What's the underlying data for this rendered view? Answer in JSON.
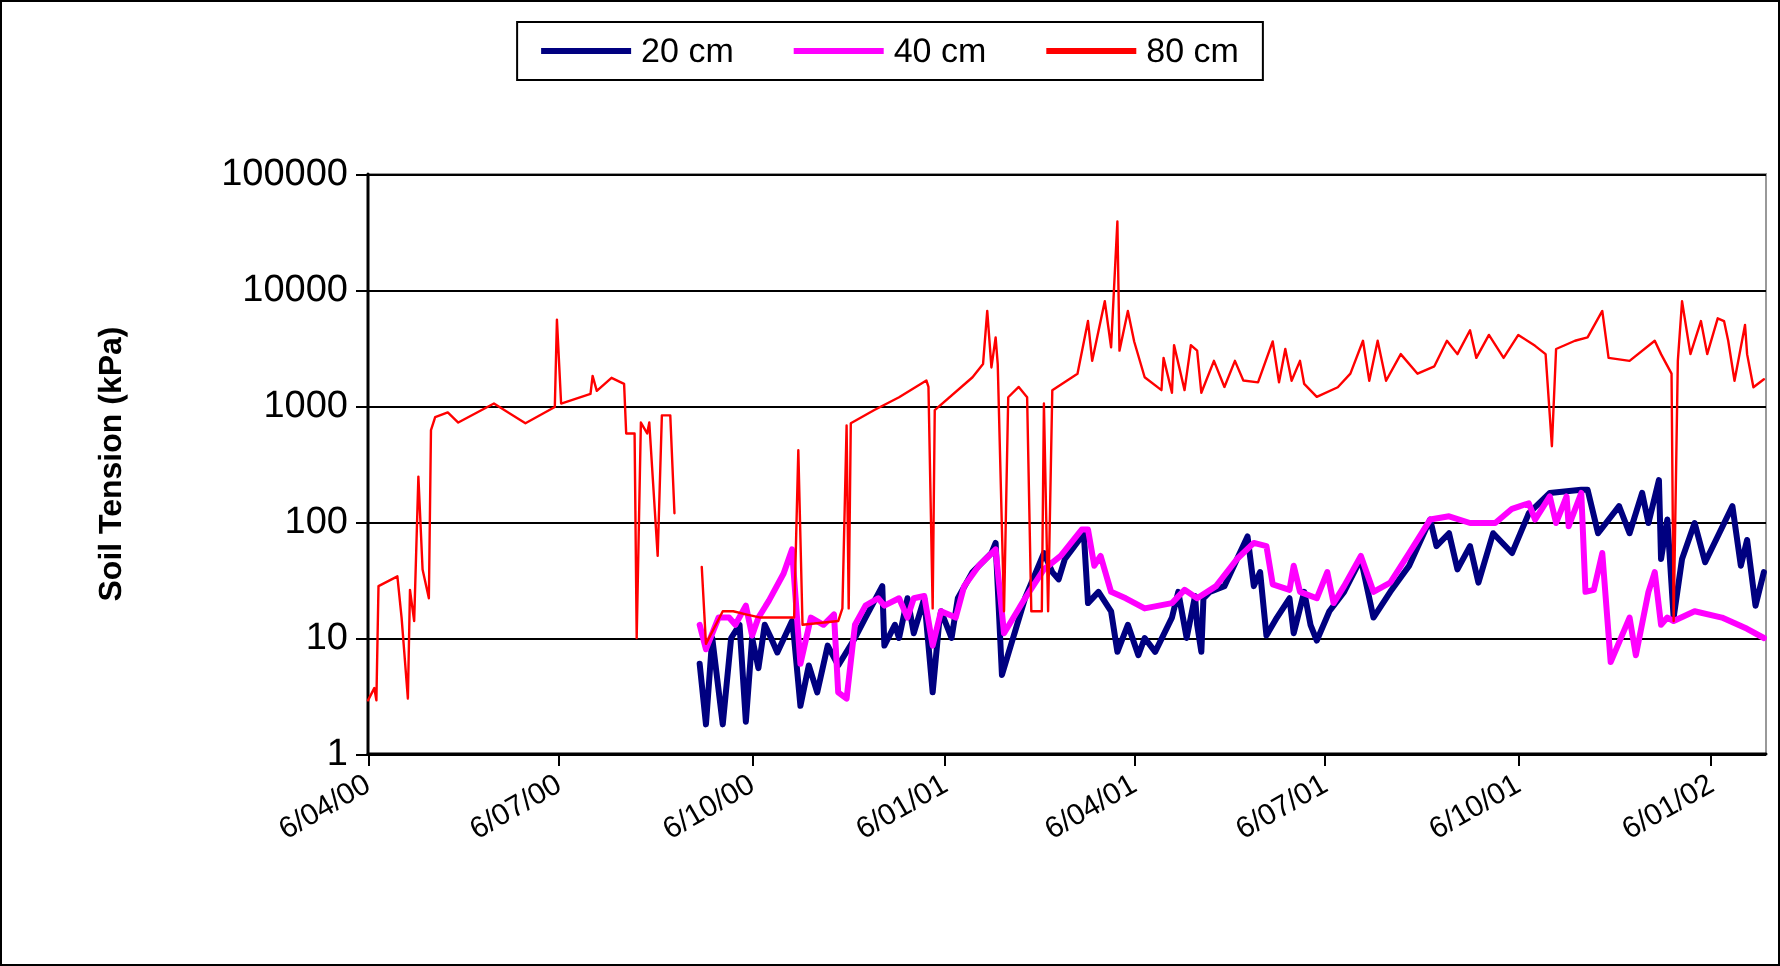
{
  "chart_data": {
    "type": "line",
    "ylabel": "Soil Tension (kPa)",
    "log": "y",
    "ylim": [
      1,
      100000
    ],
    "yticks": [
      1,
      10,
      100,
      1000,
      10000,
      100000
    ],
    "xlim": [
      "2000-04-06",
      "2002-02-01"
    ],
    "xticks": [
      {
        "value": "2000-04-06",
        "label": "6/04/00"
      },
      {
        "value": "2000-07-06",
        "label": "6/07/00"
      },
      {
        "value": "2000-10-06",
        "label": "6/10/00"
      },
      {
        "value": "2001-01-06",
        "label": "6/01/01"
      },
      {
        "value": "2001-04-06",
        "label": "6/04/01"
      },
      {
        "value": "2001-07-06",
        "label": "6/07/01"
      },
      {
        "value": "2001-10-06",
        "label": "6/10/01"
      },
      {
        "value": "2002-01-06",
        "label": "6/01/02"
      }
    ],
    "grid": "y",
    "legend": "top",
    "marker": "none",
    "line_style": "solid",
    "series": [
      {
        "name": "20 cm",
        "color": "#000080",
        "x": [
          "2000-09-11",
          "2000-09-14",
          "2000-09-17",
          "2000-09-22",
          "2000-09-26",
          "2000-09-30",
          "2000-10-03",
          "2000-10-06",
          "2000-10-09",
          "2000-10-12",
          "2000-10-15",
          "2000-10-18",
          "2000-10-25",
          "2000-10-26",
          "2000-10-29",
          "2000-11-02",
          "2000-11-06",
          "2000-11-11",
          "2000-11-16",
          "2000-11-24",
          "2000-11-29",
          "2000-12-07",
          "2000-12-08",
          "2000-12-13",
          "2000-12-15",
          "2000-12-19",
          "2000-12-22",
          "2000-12-27",
          "2000-12-31",
          "2001-01-03",
          "2001-01-04",
          "2001-01-09",
          "2001-01-12",
          "2001-01-19",
          "2001-01-28",
          "2001-01-30",
          "2001-02-02",
          "2001-02-13",
          "2001-02-22",
          "2001-02-26",
          "2001-03-01",
          "2001-03-04",
          "2001-03-12",
          "2001-03-13",
          "2001-03-15",
          "2001-03-20",
          "2001-03-26",
          "2001-03-29",
          "2001-04-03",
          "2001-04-08",
          "2001-04-11",
          "2001-04-16",
          "2001-04-24",
          "2001-04-27",
          "2001-05-01",
          "2001-05-05",
          "2001-05-06",
          "2001-05-08",
          "2001-05-09",
          "2001-05-12",
          "2001-05-19",
          "2001-05-30",
          "2001-06-02",
          "2001-06-05",
          "2001-06-08",
          "2001-06-13",
          "2001-06-19",
          "2001-06-21",
          "2001-06-26",
          "2001-06-29",
          "2001-07-02",
          "2001-07-08",
          "2001-07-15",
          "2001-07-23",
          "2001-07-29",
          "2001-08-06",
          "2001-08-15",
          "2001-08-25",
          "2001-08-28",
          "2001-09-03",
          "2001-09-07",
          "2001-09-13",
          "2001-09-17",
          "2001-09-24",
          "2001-10-03",
          "2001-10-11",
          "2001-10-21",
          "2001-11-05",
          "2001-11-08",
          "2001-11-13",
          "2001-11-23",
          "2001-11-28",
          "2001-12-04",
          "2001-12-07",
          "2001-12-12",
          "2001-12-13",
          "2001-12-16",
          "2001-12-19",
          "2001-12-23",
          "2001-12-29",
          "2002-01-03",
          "2002-01-16",
          "2002-01-20",
          "2002-01-23",
          "2002-01-27",
          "2002-01-31"
        ],
        "values": [
          6,
          1.8,
          10,
          1.8,
          10,
          13,
          1.9,
          10,
          5.5,
          13,
          10,
          7.5,
          14,
          10,
          2.6,
          5.8,
          3.4,
          8.6,
          5.8,
          10,
          15,
          28,
          8.6,
          13,
          10,
          22,
          11,
          22,
          3.4,
          13,
          17,
          10,
          22,
          37,
          54,
          66,
          4.8,
          22,
          54,
          37,
          32,
          48,
          75,
          80,
          20,
          25,
          17,
          7.6,
          13,
          7.1,
          10,
          7.6,
          15,
          25,
          10,
          23,
          13,
          7.6,
          22,
          25,
          28,
          75,
          28,
          37,
          10.5,
          15,
          22,
          11,
          25,
          13,
          9.5,
          17,
          25,
          48,
          15,
          25,
          42,
          105,
          62,
          80,
          39,
          62,
          30,
          80,
          54,
          119,
          178,
          190,
          190,
          80,
          137,
          80,
          178,
          98,
          230,
          48,
          105,
          15,
          48,
          98,
          45,
          137,
          42,
          70,
          19,
          37
        ]
      },
      {
        "name": "40 cm",
        "color": "#ff00ff",
        "x": [
          "2000-09-11",
          "2000-09-14",
          "2000-09-20",
          "2000-09-25",
          "2000-09-28",
          "2000-10-03",
          "2000-10-06",
          "2000-10-09",
          "2000-10-14",
          "2000-10-21",
          "2000-10-25",
          "2000-10-29",
          "2000-11-03",
          "2000-11-09",
          "2000-11-14",
          "2000-11-16",
          "2000-11-20",
          "2000-11-24",
          "2000-11-29",
          "2000-12-05",
          "2000-12-08",
          "2000-12-15",
          "2000-12-19",
          "2000-12-22",
          "2000-12-27",
          "2000-12-31",
          "2001-01-04",
          "2001-01-11",
          "2001-01-15",
          "2001-01-22",
          "2001-01-30",
          "2001-02-03",
          "2001-02-13",
          "2001-02-22",
          "2001-03-02",
          "2001-03-12",
          "2001-03-15",
          "2001-03-18",
          "2001-03-21",
          "2001-03-26",
          "2001-04-02",
          "2001-04-11",
          "2001-04-24",
          "2001-04-30",
          "2001-05-06",
          "2001-05-15",
          "2001-05-25",
          "2001-06-02",
          "2001-06-08",
          "2001-06-11",
          "2001-06-19",
          "2001-06-21",
          "2001-06-24",
          "2001-07-02",
          "2001-07-07",
          "2001-07-10",
          "2001-07-15",
          "2001-07-23",
          "2001-07-29",
          "2001-08-06",
          "2001-08-15",
          "2001-08-25",
          "2001-09-03",
          "2001-09-13",
          "2001-09-25",
          "2001-10-03",
          "2001-10-11",
          "2001-10-14",
          "2001-10-21",
          "2001-10-24",
          "2001-10-29",
          "2001-10-30",
          "2001-11-05",
          "2001-11-07",
          "2001-11-11",
          "2001-11-15",
          "2001-11-19",
          "2001-11-28",
          "2001-12-01",
          "2001-12-07",
          "2001-12-10",
          "2001-12-13",
          "2001-12-16",
          "2001-12-19",
          "2001-12-29",
          "2002-01-11",
          "2002-01-23",
          "2002-01-31"
        ],
        "values": [
          13,
          8,
          15,
          15,
          13,
          19,
          10.5,
          15,
          21,
          36,
          58,
          6,
          15,
          13,
          16,
          3.4,
          3,
          13,
          19,
          22,
          19,
          22,
          15,
          22,
          23,
          8.6,
          17,
          15,
          28,
          42,
          58,
          11,
          22,
          39,
          51,
          86,
          86,
          42,
          51,
          25,
          22,
          18,
          20,
          26,
          22,
          28,
          48,
          66,
          62,
          29,
          26,
          42,
          25,
          22,
          37,
          20,
          28,
          51,
          25,
          30,
          54,
          105,
          112,
          98,
          98,
          130,
          145,
          105,
          166,
          98,
          166,
          92,
          178,
          25,
          26,
          54,
          6.2,
          15,
          7.1,
          25,
          37,
          13,
          15,
          14,
          17,
          15,
          12,
          10
        ]
      },
      {
        "name": "80 cm",
        "color": "#ff0000",
        "x": [
          "2000-04-06",
          "2000-04-09",
          "2000-04-10",
          "2000-04-11",
          "2000-04-20",
          "2000-04-22",
          "2000-04-25",
          "2000-04-26",
          "2000-04-28",
          "2000-04-30",
          "2000-05-02",
          "2000-05-05",
          "2000-05-06",
          "2000-05-08",
          "2000-05-14",
          "2000-05-19",
          "2000-06-05",
          "2000-06-20",
          "2000-07-04",
          "2000-07-05",
          "2000-07-07",
          "2000-07-21",
          "2000-07-22",
          "2000-07-24",
          "2000-07-31",
          "2000-08-06",
          "2000-08-07",
          "2000-08-11",
          "2000-08-12",
          "2000-08-14",
          "2000-08-17",
          "2000-08-18",
          "2000-08-22",
          "2000-08-24",
          "2000-08-28",
          "2000-08-30",
          "2000-09-05",
          "2000-09-12",
          "2000-09-14",
          "2000-09-22",
          "2000-09-27",
          "2000-10-03",
          "2000-10-10",
          "2000-10-26",
          "2000-10-28",
          "2000-10-30",
          "2000-11-16",
          "2000-11-18",
          "2000-11-20",
          "2000-11-21",
          "2000-11-22",
          "2000-12-03",
          "2000-12-15",
          "2000-12-28",
          "2000-12-29",
          "2000-12-31",
          "2001-01-01",
          "2001-01-19",
          "2001-01-24",
          "2001-01-26",
          "2001-01-28",
          "2001-01-30",
          "2001-01-31",
          "2001-02-03",
          "2001-02-05",
          "2001-02-10",
          "2001-02-14",
          "2001-02-16",
          "2001-02-21",
          "2001-02-22",
          "2001-02-24",
          "2001-02-26",
          "2001-03-10",
          "2001-03-15",
          "2001-03-17",
          "2001-03-23",
          "2001-03-26",
          "2001-03-29",
          "2001-03-30",
          "2001-04-03",
          "2001-04-06",
          "2001-04-11",
          "2001-04-19",
          "2001-04-20",
          "2001-04-24",
          "2001-04-25",
          "2001-04-30",
          "2001-05-03",
          "2001-05-06",
          "2001-05-08",
          "2001-05-14",
          "2001-05-19",
          "2001-05-24",
          "2001-05-28",
          "2001-06-04",
          "2001-06-11",
          "2001-06-14",
          "2001-06-17",
          "2001-06-20",
          "2001-06-24",
          "2001-06-26",
          "2001-07-02",
          "2001-07-12",
          "2001-07-18",
          "2001-07-24",
          "2001-07-27",
          "2001-07-31",
          "2001-08-04",
          "2001-08-11",
          "2001-08-19",
          "2001-08-27",
          "2001-09-02",
          "2001-09-07",
          "2001-09-13",
          "2001-09-16",
          "2001-09-22",
          "2001-09-29",
          "2001-10-06",
          "2001-10-14",
          "2001-10-19",
          "2001-10-22",
          "2001-10-24",
          "2001-11-02",
          "2001-11-08",
          "2001-11-15",
          "2001-11-18",
          "2001-11-28",
          "2001-12-10",
          "2001-12-13",
          "2001-12-18",
          "2001-12-19",
          "2001-12-21",
          "2001-12-23",
          "2001-12-27",
          "2002-01-01",
          "2002-01-04",
          "2002-01-09",
          "2002-01-12",
          "2002-01-14",
          "2002-01-17",
          "2002-01-22",
          "2002-01-23",
          "2002-01-26",
          "2002-01-31"
        ],
        "values": [
          2.9,
          3.7,
          2.9,
          28,
          34,
          15,
          3,
          26,
          14,
          246,
          39,
          22,
          620,
          800,
          880,
          720,
          1050,
          710,
          980,
          5550,
          1050,
          1270,
          1820,
          1350,
          1750,
          1550,
          580,
          580,
          10,
          720,
          580,
          720,
          51,
          830,
          830,
          119,
          null,
          41,
          8.9,
          17,
          17,
          16,
          15,
          15,
          415,
          13,
          14,
          18,
          680,
          18,
          710,
          920,
          1190,
          1660,
          1460,
          18,
          920,
          1770,
          2300,
          6600,
          2150,
          3900,
          2300,
          17,
          1190,
          1460,
          1190,
          17,
          17,
          1050,
          17,
          1370,
          1900,
          5400,
          2450,
          8000,
          3200,
          39000,
          3000,
          6600,
          3600,
          1770,
          1370,
          2600,
          1300,
          3350,
          1370,
          3350,
          3000,
          1300,
          2450,
          1460,
          2450,
          1660,
          1600,
          3600,
          1600,
          3100,
          1650,
          2450,
          1550,
          1200,
          1450,
          1900,
          3650,
          1650,
          3650,
          1650,
          2800,
          1900,
          2200,
          3650,
          2800,
          4500,
          2600,
          4100,
          2600,
          4100,
          3300,
          2800,
          450,
          3100,
          3650,
          3900,
          6600,
          2600,
          2450,
          3650,
          2800,
          1900,
          14,
          2450,
          8000,
          2800,
          5400,
          2800,
          5700,
          5400,
          3650,
          1650,
          5000,
          2800,
          1450,
          1700
        ]
      }
    ]
  }
}
